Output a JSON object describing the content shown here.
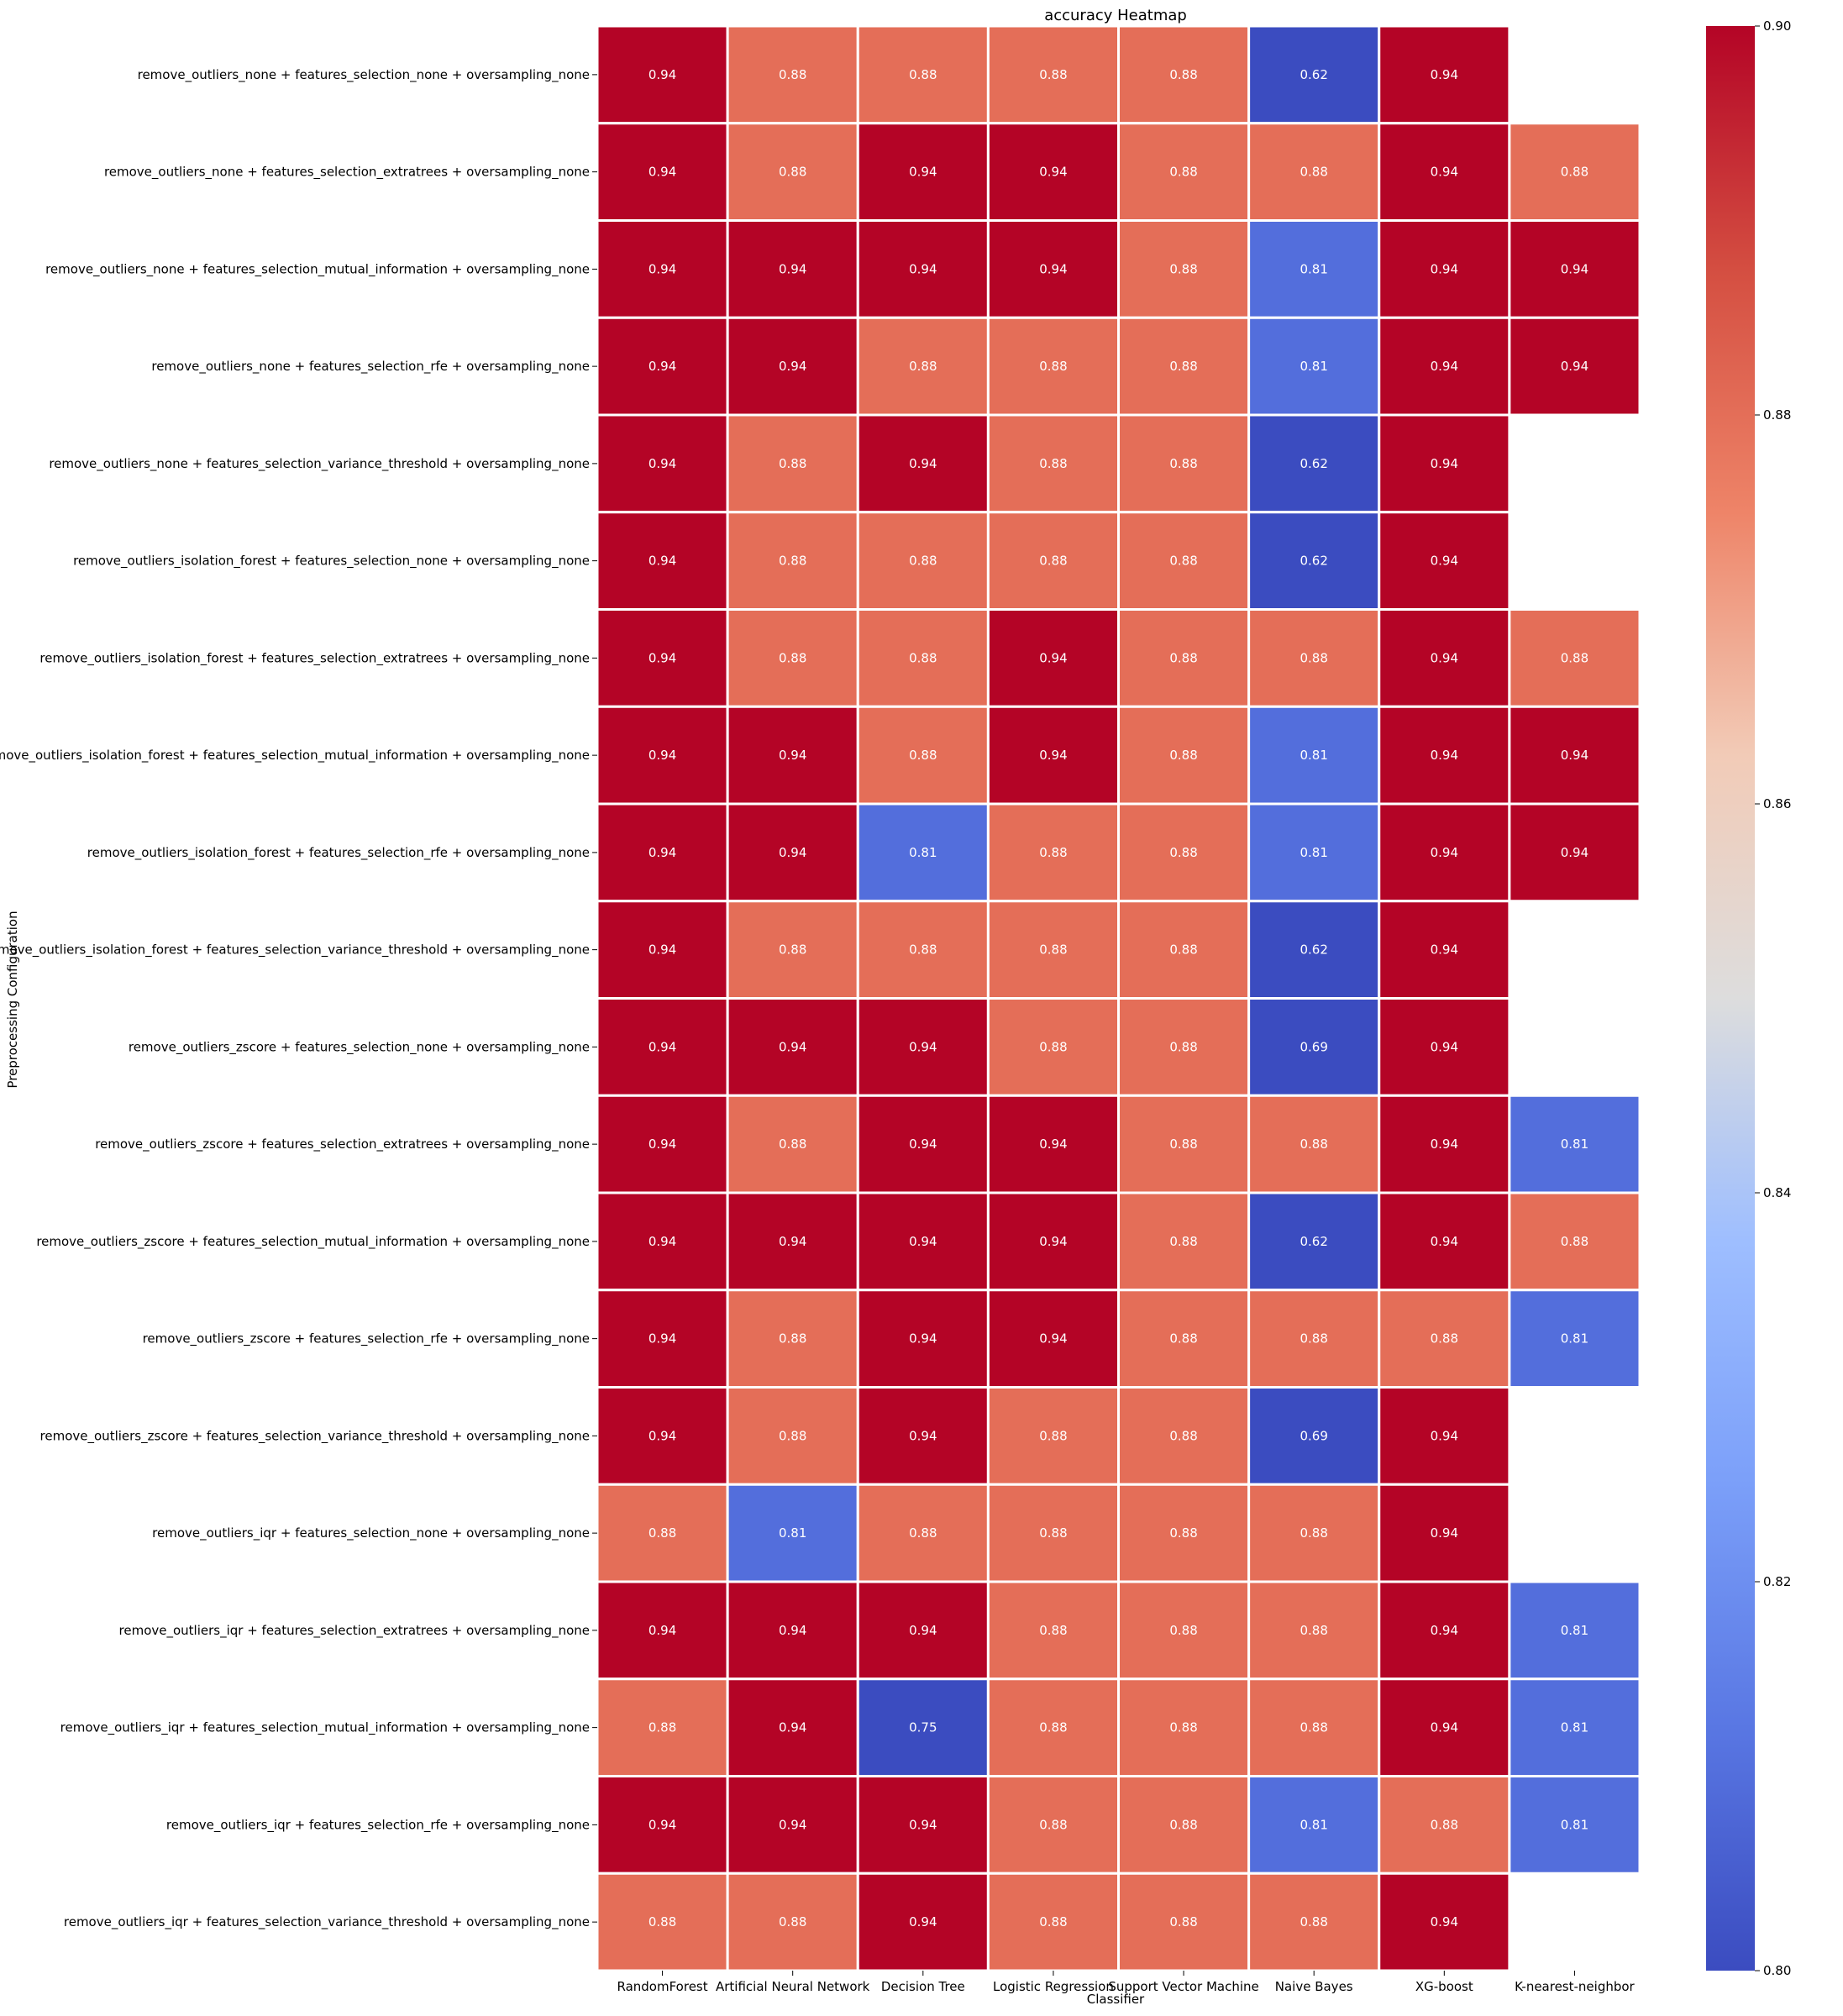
{
  "chart_data": {
    "type": "heatmap",
    "title": "accuracy Heatmap",
    "xlabel": "Classifier",
    "ylabel": "Preprocessing Configuration",
    "colormap": "coolwarm",
    "vmin": 0.8,
    "vmax": 0.9,
    "colorbar_ticks": [
      "0.80",
      "0.82",
      "0.84",
      "0.86",
      "0.88",
      "0.90"
    ],
    "columns": [
      "RandomForest",
      "Artificial Neural Network",
      "Decision Tree",
      "Logistic Regression",
      "Support Vector Machine",
      "Naive Bayes",
      "XG-boost",
      "K-nearest-neighbor"
    ],
    "rows": [
      "remove_outliers_none + features_selection_none + oversampling_none",
      "remove_outliers_none + features_selection_extratrees + oversampling_none",
      "remove_outliers_none + features_selection_mutual_information + oversampling_none",
      "remove_outliers_none + features_selection_rfe + oversampling_none",
      "remove_outliers_none + features_selection_variance_threshold + oversampling_none",
      "remove_outliers_isolation_forest + features_selection_none + oversampling_none",
      "remove_outliers_isolation_forest + features_selection_extratrees + oversampling_none",
      "remove_outliers_isolation_forest + features_selection_mutual_information + oversampling_none",
      "remove_outliers_isolation_forest + features_selection_rfe + oversampling_none",
      "remove_outliers_isolation_forest + features_selection_variance_threshold + oversampling_none",
      "remove_outliers_zscore + features_selection_none + oversampling_none",
      "remove_outliers_zscore + features_selection_extratrees + oversampling_none",
      "remove_outliers_zscore + features_selection_mutual_information + oversampling_none",
      "remove_outliers_zscore + features_selection_rfe + oversampling_none",
      "remove_outliers_zscore + features_selection_variance_threshold + oversampling_none",
      "remove_outliers_iqr + features_selection_none + oversampling_none",
      "remove_outliers_iqr + features_selection_extratrees + oversampling_none",
      "remove_outliers_iqr + features_selection_mutual_information + oversampling_none",
      "remove_outliers_iqr + features_selection_rfe + oversampling_none",
      "remove_outliers_iqr + features_selection_variance_threshold + oversampling_none"
    ],
    "values": [
      [
        0.94,
        0.88,
        0.88,
        0.88,
        0.88,
        0.62,
        0.94,
        null
      ],
      [
        0.94,
        0.88,
        0.94,
        0.94,
        0.88,
        0.88,
        0.94,
        0.88
      ],
      [
        0.94,
        0.94,
        0.94,
        0.94,
        0.88,
        0.81,
        0.94,
        0.94
      ],
      [
        0.94,
        0.94,
        0.88,
        0.88,
        0.88,
        0.81,
        0.94,
        0.94
      ],
      [
        0.94,
        0.88,
        0.94,
        0.88,
        0.88,
        0.62,
        0.94,
        null
      ],
      [
        0.94,
        0.88,
        0.88,
        0.88,
        0.88,
        0.62,
        0.94,
        null
      ],
      [
        0.94,
        0.88,
        0.88,
        0.94,
        0.88,
        0.88,
        0.94,
        0.88
      ],
      [
        0.94,
        0.94,
        0.88,
        0.94,
        0.88,
        0.81,
        0.94,
        0.94
      ],
      [
        0.94,
        0.94,
        0.81,
        0.88,
        0.88,
        0.81,
        0.94,
        0.94
      ],
      [
        0.94,
        0.88,
        0.88,
        0.88,
        0.88,
        0.62,
        0.94,
        null
      ],
      [
        0.94,
        0.94,
        0.94,
        0.88,
        0.88,
        0.69,
        0.94,
        null
      ],
      [
        0.94,
        0.88,
        0.94,
        0.94,
        0.88,
        0.88,
        0.94,
        0.81
      ],
      [
        0.94,
        0.94,
        0.94,
        0.94,
        0.88,
        0.62,
        0.94,
        0.88
      ],
      [
        0.94,
        0.88,
        0.94,
        0.94,
        0.88,
        0.88,
        0.88,
        0.81
      ],
      [
        0.94,
        0.88,
        0.94,
        0.88,
        0.88,
        0.69,
        0.94,
        null
      ],
      [
        0.88,
        0.81,
        0.88,
        0.88,
        0.88,
        0.88,
        0.94,
        null
      ],
      [
        0.94,
        0.94,
        0.94,
        0.88,
        0.88,
        0.88,
        0.94,
        0.81
      ],
      [
        0.88,
        0.94,
        0.75,
        0.88,
        0.88,
        0.88,
        0.94,
        0.81
      ],
      [
        0.94,
        0.94,
        0.94,
        0.88,
        0.88,
        0.81,
        0.88,
        0.81
      ],
      [
        0.88,
        0.88,
        0.94,
        0.88,
        0.88,
        0.88,
        0.94,
        null
      ]
    ],
    "grid": false,
    "colorbar": "right"
  }
}
